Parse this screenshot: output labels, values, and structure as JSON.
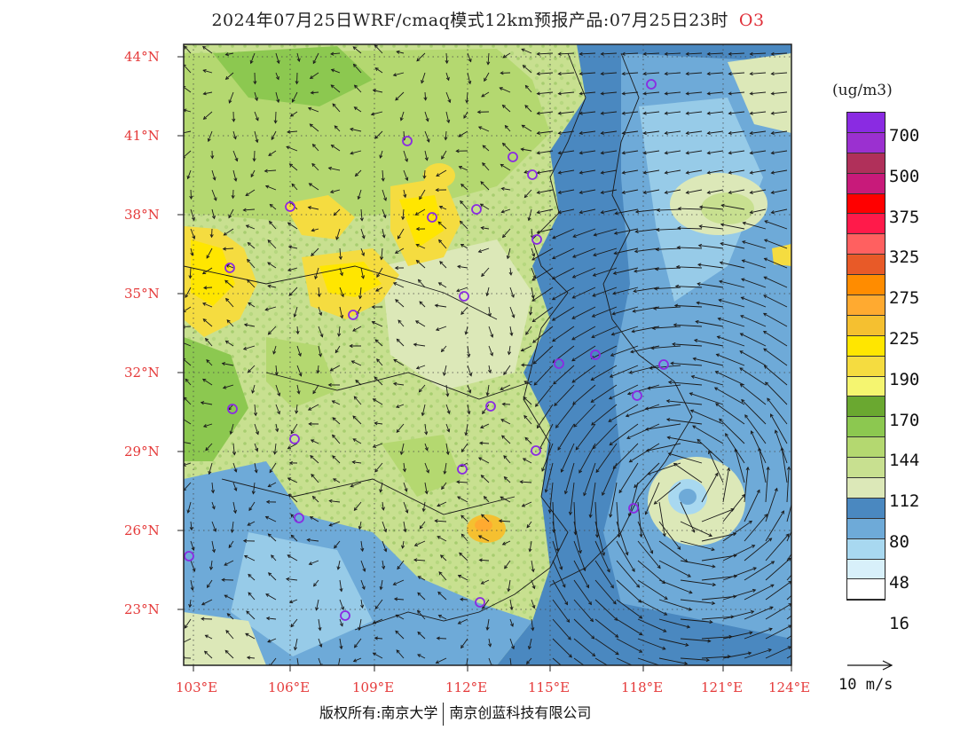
{
  "title": "2024年07月25日WRF/cmaq模式12km预报产品:07月25日23时",
  "species": "O3",
  "unit": "(ug/m3)",
  "legend": {
    "labels": [
      "700",
      "500",
      "375",
      "325",
      "275",
      "225",
      "190",
      "170",
      "144",
      "112",
      "80",
      "48",
      "16"
    ],
    "colors": [
      "#8a2be2",
      "#9b30d0",
      "#b0305a",
      "#c81a7a",
      "#ff0000",
      "#ff1a4a",
      "#ff6060",
      "#e85a28",
      "#ff8c00",
      "#ffaa30",
      "#f5c030",
      "#ffe600",
      "#f5dc40",
      "#f5f570",
      "#6aa830",
      "#8cc850",
      "#b4d870",
      "#c8e090",
      "#dce8b8",
      "#4a88c0",
      "#6eaad8",
      "#a8d8f0",
      "#d8f0fa",
      "#ffffff"
    ]
  },
  "lat_labels": [
    "44°N",
    "41°N",
    "38°N",
    "35°N",
    "32°N",
    "29°N",
    "26°N",
    "23°N"
  ],
  "lon_labels": [
    "103°E",
    "106°E",
    "109°E",
    "112°E",
    "115°E",
    "118°E",
    "121°E",
    "124°E"
  ],
  "ref_vector": "10 m/s",
  "copyright": {
    "left": "版权所有:南京大学",
    "right": "南京创蓝科技有限公司"
  },
  "colors": {
    "frame": "#222222",
    "axis_label": "#e53a3a",
    "station": "#8a2be2"
  }
}
